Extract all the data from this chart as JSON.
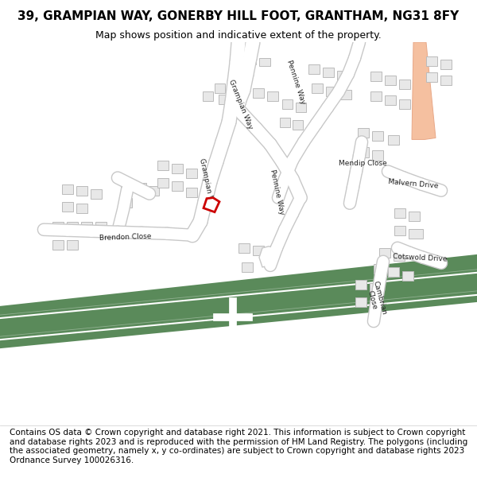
{
  "title": "39, GRAMPIAN WAY, GONERBY HILL FOOT, GRANTHAM, NG31 8FY",
  "subtitle": "Map shows position and indicative extent of the property.",
  "footer": "Contains OS data © Crown copyright and database right 2021. This information is subject to Crown copyright and database rights 2023 and is reproduced with the permission of HM Land Registry. The polygons (including the associated geometry, namely x, y co-ordinates) are subject to Crown copyright and database rights 2023 Ordnance Survey 100026316.",
  "bg_color": "#ffffff",
  "road_color": "#ffffff",
  "road_outline": "#c8c8c8",
  "building_color": "#e8e8e8",
  "building_outline": "#bbbbbb",
  "green_color": "#5a8a5a",
  "highlight_color": "#cc0000",
  "pink_road_color": "#f5c0a0",
  "pink_road_outline": "#e8a888",
  "title_fontsize": 11,
  "subtitle_fontsize": 9,
  "footer_fontsize": 7.5
}
